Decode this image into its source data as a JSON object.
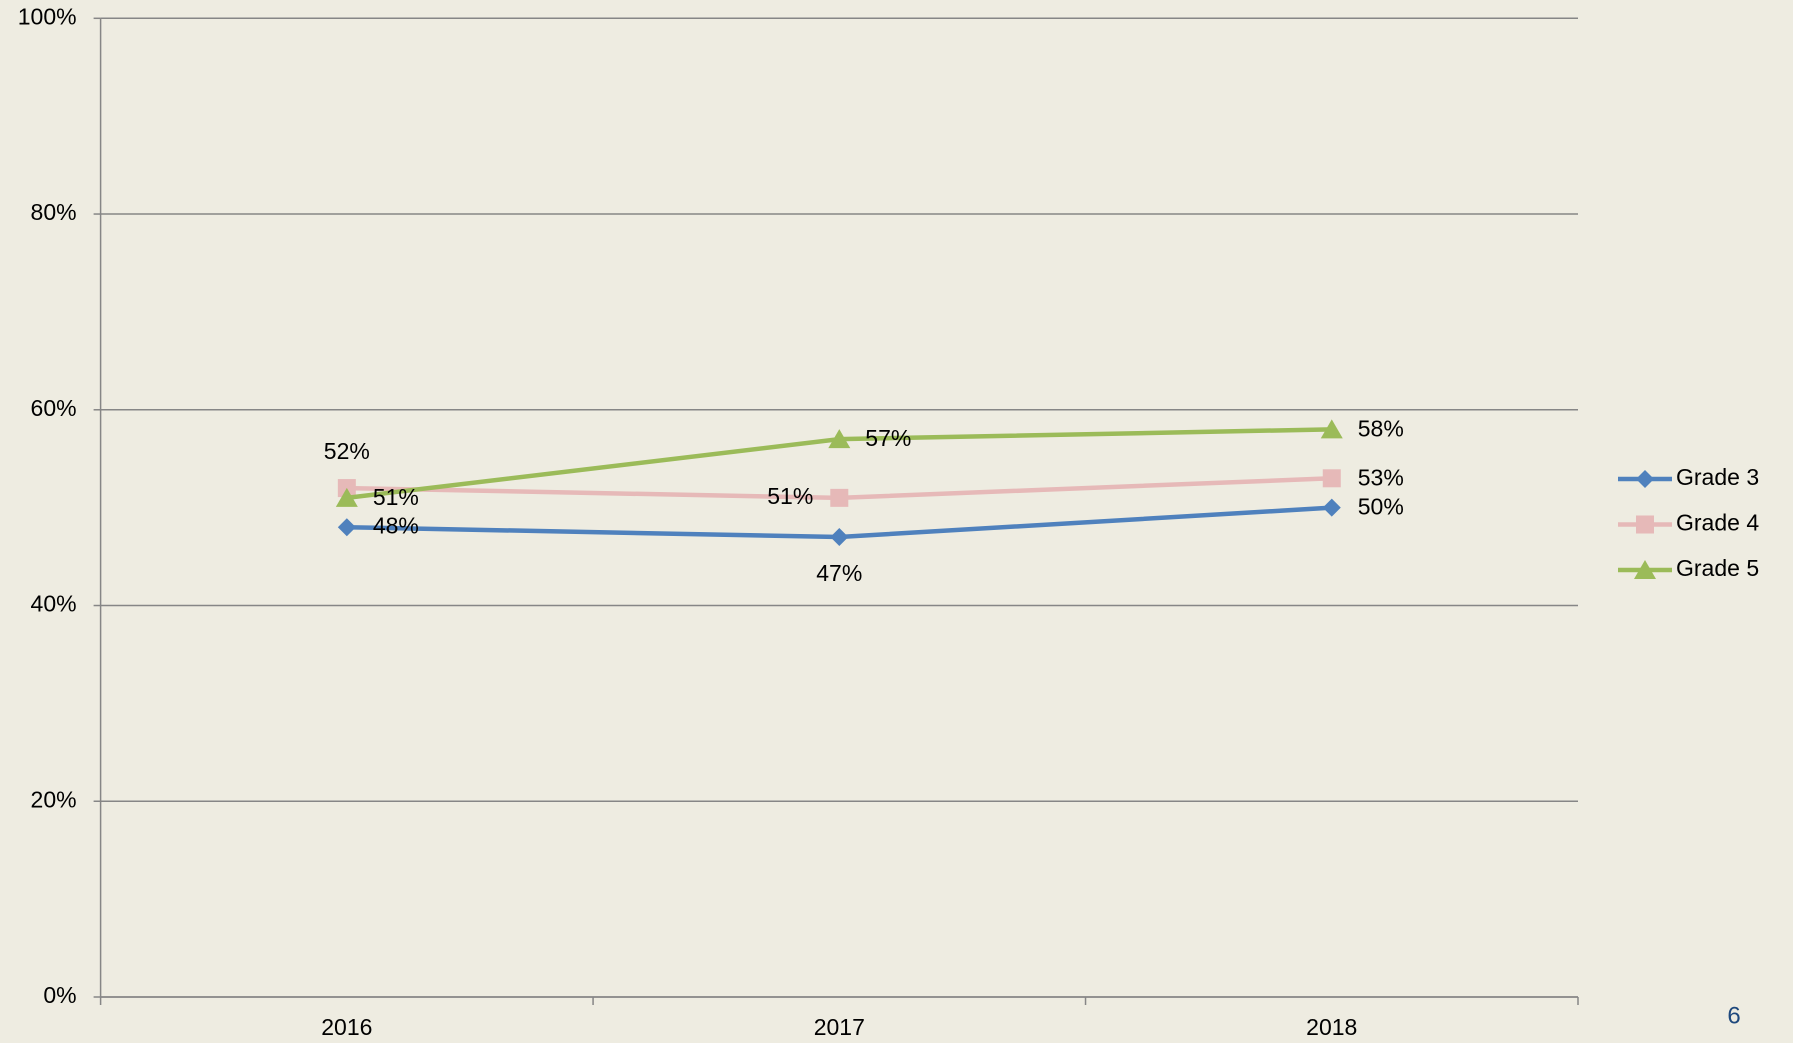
{
  "chart_data": {
    "type": "line",
    "categories": [
      "2016",
      "2017",
      "2018"
    ],
    "series": [
      {
        "name": "Grade 3",
        "color": "#4f81bd",
        "values": [
          48,
          47,
          50
        ],
        "value_labels": [
          "48%",
          "47%",
          "50%"
        ]
      },
      {
        "name": "Grade 4",
        "color": "#e6b9b8",
        "values": [
          52,
          51,
          53
        ],
        "value_labels": [
          "52%",
          "51%",
          "53%"
        ]
      },
      {
        "name": "Grade 5",
        "color": "#9bbb59",
        "values": [
          51,
          57,
          58
        ],
        "value_labels": [
          "51%",
          "57%",
          "58%"
        ]
      }
    ],
    "ylim": [
      0,
      100
    ],
    "yticks": [
      {
        "value": 0,
        "label": "0%"
      },
      {
        "value": 20,
        "label": "20%"
      },
      {
        "value": 40,
        "label": "40%"
      },
      {
        "value": 60,
        "label": "60%"
      },
      {
        "value": 80,
        "label": "80%"
      },
      {
        "value": 100,
        "label": "100%"
      }
    ],
    "grid": true,
    "legend": "right"
  },
  "slide_number": "6"
}
